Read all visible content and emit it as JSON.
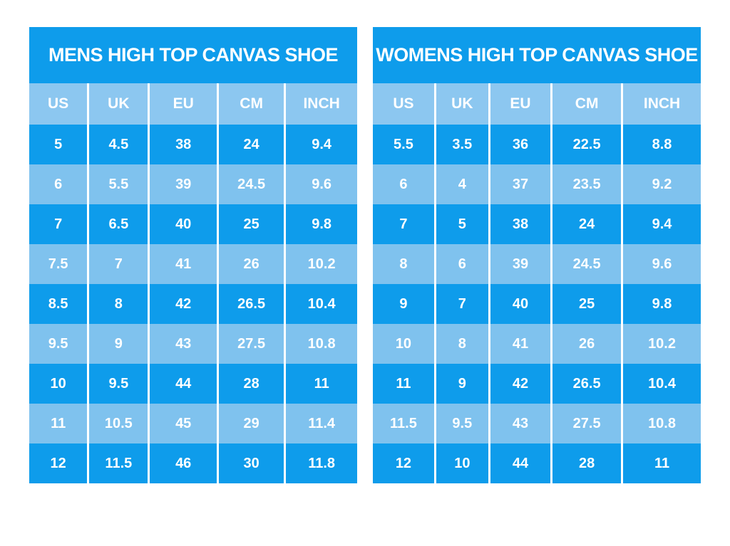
{
  "colors": {
    "bright_blue": "#0e9ceb",
    "light_blue": "#7fc2ee",
    "header_blue": "#8cc7f0",
    "text": "#ffffff",
    "background": "#ffffff"
  },
  "chart_data": [
    {
      "type": "table",
      "title": "MENS HIGH TOP CANVAS SHOE",
      "columns": [
        "US",
        "UK",
        "EU",
        "CM",
        "INCH"
      ],
      "rows": [
        [
          "5",
          "4.5",
          "38",
          "24",
          "9.4"
        ],
        [
          "6",
          "5.5",
          "39",
          "24.5",
          "9.6"
        ],
        [
          "7",
          "6.5",
          "40",
          "25",
          "9.8"
        ],
        [
          "7.5",
          "7",
          "41",
          "26",
          "10.2"
        ],
        [
          "8.5",
          "8",
          "42",
          "26.5",
          "10.4"
        ],
        [
          "9.5",
          "9",
          "43",
          "27.5",
          "10.8"
        ],
        [
          "10",
          "9.5",
          "44",
          "28",
          "11"
        ],
        [
          "11",
          "10.5",
          "45",
          "29",
          "11.4"
        ],
        [
          "12",
          "11.5",
          "46",
          "30",
          "11.8"
        ]
      ]
    },
    {
      "type": "table",
      "title": "WOMENS HIGH TOP CANVAS SHOE",
      "columns": [
        "US",
        "UK",
        "EU",
        "CM",
        "INCH"
      ],
      "rows": [
        [
          "5.5",
          "3.5",
          "36",
          "22.5",
          "8.8"
        ],
        [
          "6",
          "4",
          "37",
          "23.5",
          "9.2"
        ],
        [
          "7",
          "5",
          "38",
          "24",
          "9.4"
        ],
        [
          "8",
          "6",
          "39",
          "24.5",
          "9.6"
        ],
        [
          "9",
          "7",
          "40",
          "25",
          "9.8"
        ],
        [
          "10",
          "8",
          "41",
          "26",
          "10.2"
        ],
        [
          "11",
          "9",
          "42",
          "26.5",
          "10.4"
        ],
        [
          "11.5",
          "9.5",
          "43",
          "27.5",
          "10.8"
        ],
        [
          "12",
          "10",
          "44",
          "28",
          "11"
        ]
      ]
    }
  ]
}
